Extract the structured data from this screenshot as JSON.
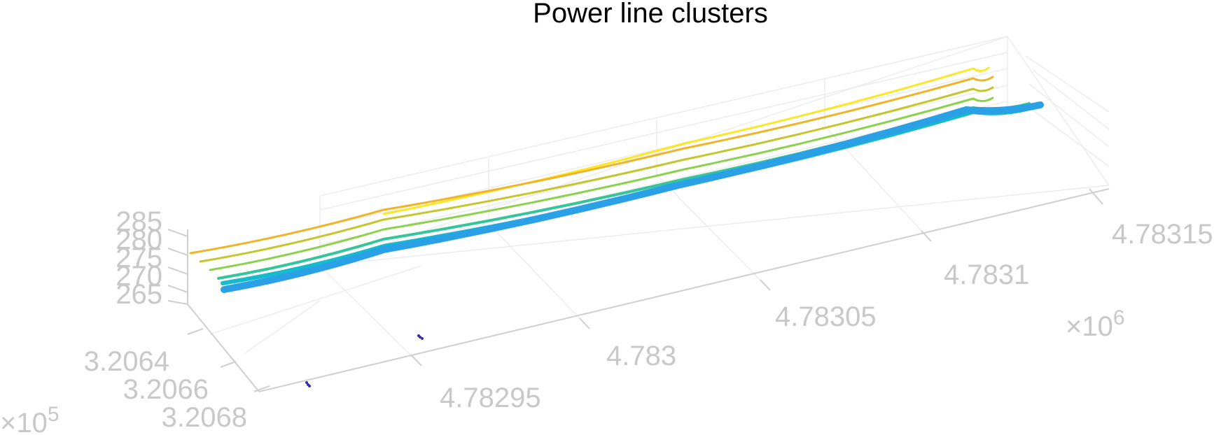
{
  "chart_data": {
    "type": "scatter",
    "title": "Power line clusters",
    "projection": "3d",
    "grid": true,
    "x_axis": {
      "ticks": [
        "4.78295",
        "4.783",
        "4.78305",
        "4.7831",
        "4.78315"
      ],
      "multiplier": "×10",
      "multiplier_exp": "6"
    },
    "y_axis": {
      "ticks": [
        "3.2064",
        "3.2066",
        "3.2068"
      ],
      "multiplier": "×10",
      "multiplier_exp": "5"
    },
    "z_axis": {
      "ticks": [
        "265",
        "270",
        "275",
        "280",
        "285"
      ]
    },
    "series": [
      {
        "color": "#fde725",
        "points": [
          [
            4.78298,
            285
          ],
          [
            4.78306,
            285
          ],
          [
            4.78314,
            285
          ],
          [
            4.783155,
            285
          ]
        ]
      },
      {
        "color": "#f0b429",
        "points": [
          [
            4.78292,
            283
          ],
          [
            4.78298,
            283
          ],
          [
            4.78306,
            283
          ],
          [
            4.78314,
            283
          ]
        ]
      },
      {
        "color": "#c5c62d",
        "points": [
          [
            4.78294,
            281
          ],
          [
            4.78298,
            281
          ],
          [
            4.78306,
            281
          ],
          [
            4.78314,
            281
          ]
        ]
      },
      {
        "color": "#8bd14b",
        "points": [
          [
            4.78295,
            279
          ],
          [
            4.78298,
            279
          ],
          [
            4.78306,
            279
          ],
          [
            4.78314,
            279
          ]
        ]
      },
      {
        "color": "#35c59a",
        "points": [
          [
            4.78296,
            277
          ],
          [
            4.78298,
            277
          ],
          [
            4.78306,
            277
          ],
          [
            4.78314,
            277
          ]
        ]
      },
      {
        "color": "#12bccb",
        "points": [
          [
            4.78297,
            275
          ],
          [
            4.78298,
            275
          ],
          [
            4.78306,
            275
          ],
          [
            4.78314,
            275
          ]
        ]
      },
      {
        "color": "#2aa1e6",
        "points": [
          [
            4.78297,
            273
          ],
          [
            4.78298,
            273
          ],
          [
            4.78306,
            273
          ],
          [
            4.78313,
            273
          ]
        ]
      },
      {
        "color": "#3b2fa8",
        "points": [
          [
            4.78296,
            265
          ],
          [
            4.78301,
            265
          ]
        ]
      }
    ]
  }
}
